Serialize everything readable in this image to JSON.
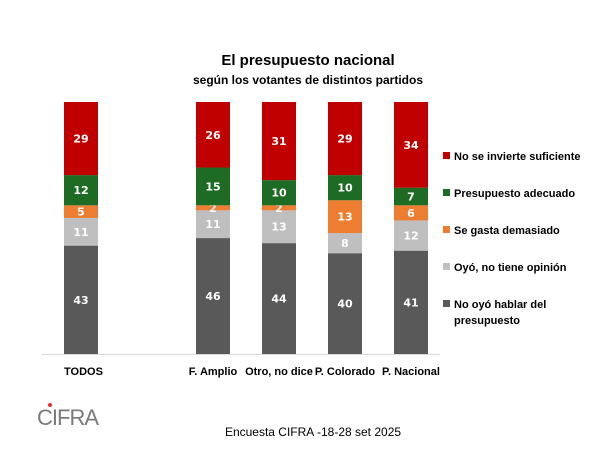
{
  "chart_data": {
    "type": "bar",
    "stacked": true,
    "title": "El presupuesto nacional",
    "subtitle": "según los votantes de distintos partidos",
    "xlabel": "",
    "ylabel": "",
    "ylim": [
      0,
      100
    ],
    "grid": false,
    "legend_position": "right",
    "categories": [
      "TODOS",
      "F. Amplio",
      "Otro, no dice",
      "P. Colorado",
      "P. Nacional"
    ],
    "series": [
      {
        "name": "No oyó hablar del presupuesto",
        "color": "#595959",
        "values": [
          43,
          46,
          44,
          40,
          41
        ]
      },
      {
        "name": "Oyó, no tiene opinión",
        "color": "#bfbfbf",
        "values": [
          11,
          11,
          13,
          8,
          12
        ]
      },
      {
        "name": "Se gasta demasiado",
        "color": "#ed7d31",
        "values": [
          5,
          2,
          2,
          13,
          6
        ]
      },
      {
        "name": "Presupuesto adecuado",
        "color": "#1e6b24",
        "values": [
          12,
          15,
          10,
          10,
          7
        ]
      },
      {
        "name": "No se invierte suficiente",
        "color": "#c00000",
        "values": [
          29,
          26,
          31,
          29,
          34
        ]
      }
    ],
    "legend_order": [
      "No se invierte suficiente",
      "Presupuesto adecuado",
      "Se gasta demasiado",
      "Oyó, no tiene opinión",
      "No oyó hablar del presupuesto"
    ]
  },
  "footer": {
    "logo_text": "CIFRA",
    "source": "Encuesta CIFRA -18-28 set 2025"
  }
}
